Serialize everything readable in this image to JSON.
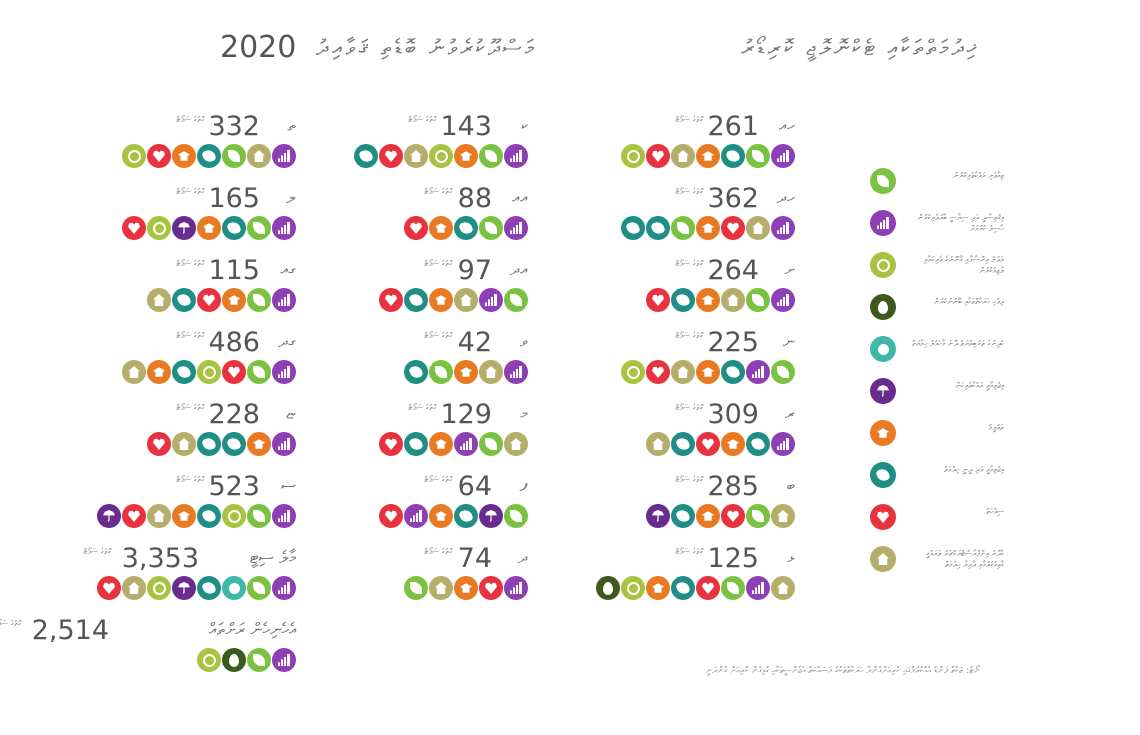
{
  "title": {
    "year": "2020",
    "part1": "މަސްދޫކުރެވުނު ބޮޑެތި ޤަވާއިދު",
    "part2": "ޚިދުމަތްތަކާއި ޓެކްނޮލޮޖީ ކޮރިޑޯރު"
  },
  "unit_label": "ގޮތުގެ ސަޕޯޓް",
  "colors": {
    "leaf": "#7cc242",
    "bars": "#8e3fb5",
    "scale": "#a9c23f",
    "drop": "#3d5a1e",
    "person": "#3fb8a9",
    "umbrella": "#6a2b8e",
    "hat": "#e87a23",
    "hands": "#1f8f86",
    "heart": "#e8323f",
    "house": "#b5ad6a"
  },
  "legend": [
    {
      "icon": "leaf",
      "label": "ތިމާވެށި ރައްކާތެރިކުރުން"
    },
    {
      "icon": "bars",
      "label": "އިޤްތިޞާދީ އަދި ސިޔާސީ ބާރުވެރިކުރުން ހާސިލު ކުރުމަށް"
    },
    {
      "icon": "scale",
      "label": "އަދުލު އިންސާފާއި ޤާނޫނުގެ ވެރިކަމާއި ލާޒިމުކުރުން"
    },
    {
      "icon": "drop",
      "label": "ދިވެހި ހަރަކާތްތަކާއި ބޭނުންކުރުން"
    },
    {
      "icon": "person",
      "label": "ކުދިންގެ ތަރުބިއްޔަތު ދޭނެ މާހައުލު ހިމާޔަތް"
    },
    {
      "icon": "umbrella",
      "label": "އިޖުތިމާޢީ ރައްކާތެރިކަން"
    },
    {
      "icon": "hat",
      "label": "ތަޢުލީމު"
    },
    {
      "icon": "hands",
      "label": "އިޖުތިމާޢީ އަދި ދީނީ ހިދުމަތް"
    },
    {
      "icon": "heart",
      "label": "ސިއްހަތު"
    },
    {
      "icon": "house",
      "label": "ގެދޮރު އިންފްރާސްޓްރަކްޗަރު ތަރައްޤީ ޤާއިމުކުރުމާއި ދާއިރާ ހިދުމަތް"
    }
  ],
  "atolls": [
    {
      "name": "ހއ",
      "value": "261",
      "icons": [
        "bars",
        "leaf",
        "hands",
        "hat",
        "house",
        "heart",
        "scale"
      ]
    },
    {
      "name": "ހދ",
      "value": "362",
      "icons": [
        "bars",
        "house",
        "heart",
        "hat",
        "leaf",
        "hands",
        "hands"
      ]
    },
    {
      "name": "ށ",
      "value": "264",
      "icons": [
        "bars",
        "leaf",
        "house",
        "hat",
        "hands",
        "heart"
      ]
    },
    {
      "name": "ނ",
      "value": "225",
      "icons": [
        "leaf",
        "bars",
        "hands",
        "hat",
        "house",
        "heart",
        "scale"
      ]
    },
    {
      "name": "ރ",
      "value": "309",
      "icons": [
        "bars",
        "hands",
        "hat",
        "heart",
        "hands",
        "house"
      ]
    },
    {
      "name": "ބ",
      "value": "285",
      "icons": [
        "house",
        "leaf",
        "heart",
        "hat",
        "hands",
        "umbrella"
      ]
    },
    {
      "name": "ޅ",
      "value": "125",
      "icons": [
        "house",
        "bars",
        "leaf",
        "heart",
        "hands",
        "hat",
        "scale",
        "drop"
      ]
    },
    {
      "name": "ކ",
      "value": "143",
      "icons": [
        "bars",
        "leaf",
        "hat",
        "scale",
        "house",
        "heart",
        "hands"
      ]
    },
    {
      "name": "އއ",
      "value": "88",
      "icons": [
        "bars",
        "leaf",
        "hands",
        "hat",
        "heart"
      ]
    },
    {
      "name": "އދ",
      "value": "97",
      "icons": [
        "leaf",
        "bars",
        "house",
        "hat",
        "hands",
        "heart"
      ]
    },
    {
      "name": "ވ",
      "value": "42",
      "icons": [
        "bars",
        "house",
        "hat",
        "leaf",
        "hands"
      ]
    },
    {
      "name": "މ",
      "value": "129",
      "icons": [
        "house",
        "leaf",
        "bars",
        "hat",
        "hands",
        "heart"
      ]
    },
    {
      "name": "ފ",
      "value": "64",
      "icons": [
        "leaf",
        "umbrella",
        "hands",
        "hat",
        "bars",
        "heart"
      ]
    },
    {
      "name": "ދ",
      "value": "74",
      "icons": [
        "bars",
        "heart",
        "hat",
        "house",
        "leaf"
      ]
    },
    {
      "name": "ތ",
      "value": "332",
      "icons": [
        "bars",
        "house",
        "leaf",
        "hands",
        "hat",
        "heart",
        "scale"
      ]
    },
    {
      "name": "ލ",
      "value": "165",
      "icons": [
        "bars",
        "leaf",
        "hands",
        "hat",
        "umbrella",
        "scale",
        "heart"
      ]
    },
    {
      "name": "ގއ",
      "value": "115",
      "icons": [
        "bars",
        "leaf",
        "hat",
        "heart",
        "hands",
        "house"
      ]
    },
    {
      "name": "ގދ",
      "value": "486",
      "icons": [
        "bars",
        "leaf",
        "heart",
        "scale",
        "hands",
        "hat",
        "house"
      ]
    },
    {
      "name": "ޏ",
      "value": "228",
      "icons": [
        "bars",
        "hat",
        "hands",
        "hands",
        "house",
        "heart"
      ]
    },
    {
      "name": "ސ",
      "value": "523",
      "icons": [
        "bars",
        "leaf",
        "scale",
        "hands",
        "hat",
        "house",
        "heart",
        "umbrella"
      ]
    },
    {
      "name": "މާލެ ސިޓީ",
      "value": "3,353",
      "icons": [
        "bars",
        "leaf",
        "person",
        "hands",
        "umbrella",
        "scale",
        "house",
        "heart"
      ]
    },
    {
      "name": "އެހެނިހެން ރަށްތައް",
      "value": "2,514",
      "icons": [
        "bars",
        "leaf",
        "drop",
        "scale"
      ]
    }
  ],
  "note": "ނޯޓު: ޒަކާތް ފަންޑު އެއްކުރުމުގައި ކުރިއަށްގެންދާ ހަރަކާތްތަކުގެ މަސައްކަތް އެޖެންސީތަކާއި ގުޅިގެން ކުރިއަށް ގެންދަނީ"
}
